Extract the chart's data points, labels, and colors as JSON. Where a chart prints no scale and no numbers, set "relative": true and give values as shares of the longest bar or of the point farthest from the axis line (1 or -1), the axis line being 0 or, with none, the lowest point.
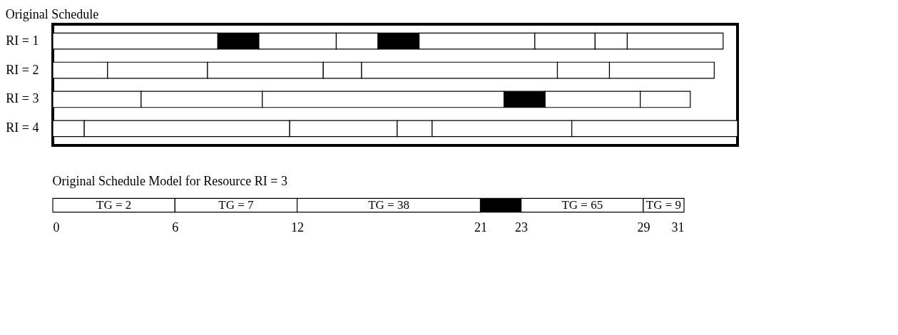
{
  "chart_data": [
    {
      "type": "bar",
      "orientation": "horizontal",
      "stacked": true,
      "relative": true,
      "title": "Original Schedule",
      "tick_labels": "y",
      "categories": [
        "RI = 1",
        "RI = 2",
        "RI = 3",
        "RI = 4"
      ],
      "series": [
        {
          "colors": [
            "#ffffff",
            "#ffffff",
            "#ffffff",
            "#ffffff"
          ],
          "values": [
            0.241,
            0.08,
            0.129,
            0.046
          ]
        },
        {
          "colors": [
            "#000000",
            "#ffffff",
            "#ffffff",
            "#ffffff"
          ],
          "values": [
            0.06,
            0.146,
            0.177,
            0.3
          ]
        },
        {
          "colors": [
            "#ffffff",
            "#ffffff",
            "#ffffff",
            "#ffffff"
          ],
          "values": [
            0.113,
            0.169,
            0.353,
            0.157
          ]
        },
        {
          "colors": [
            "#ffffff",
            "#ffffff",
            "#000000",
            "#ffffff"
          ],
          "values": [
            0.061,
            0.056,
            0.06,
            0.051
          ]
        },
        {
          "colors": [
            "#000000",
            "#ffffff",
            "#ffffff",
            "#ffffff"
          ],
          "values": [
            0.06,
            0.286,
            0.139,
            0.204
          ]
        },
        {
          "colors": [
            "#ffffff",
            "#ffffff",
            "#ffffff",
            "#ffffff"
          ],
          "values": [
            0.169,
            0.076,
            0.073,
            0.242
          ]
        },
        {
          "colors": [
            "#ffffff",
            "#ffffff",
            null,
            null
          ],
          "values": [
            0.088,
            0.153,
            null,
            null
          ]
        },
        {
          "colors": [
            "#ffffff",
            null,
            null,
            null
          ],
          "values": [
            0.047,
            null,
            null,
            null
          ]
        },
        {
          "colors": [
            "#ffffff",
            null,
            null,
            null
          ],
          "values": [
            0.14,
            null,
            null,
            null
          ]
        }
      ]
    },
    {
      "type": "bar",
      "orientation": "horizontal",
      "stacked": true,
      "title": "Original Schedule Model for Resource RI = 3",
      "tick_labels": "x",
      "categories": [
        null
      ],
      "xlim": [
        0,
        31
      ],
      "xticks": [
        0,
        6,
        12,
        21,
        23,
        29,
        31
      ],
      "series": [
        {
          "name": "TG = 2",
          "color": "#ffffff",
          "values": [
            6
          ]
        },
        {
          "name": "TG = 7",
          "color": "#ffffff",
          "values": [
            6
          ]
        },
        {
          "name": "TG = 38",
          "color": "#ffffff",
          "values": [
            9
          ]
        },
        {
          "color": "#000000",
          "values": [
            2
          ]
        },
        {
          "name": "TG = 65",
          "color": "#ffffff",
          "values": [
            6
          ]
        },
        {
          "name": "TG = 9",
          "color": "#ffffff",
          "values": [
            2
          ]
        }
      ]
    }
  ]
}
